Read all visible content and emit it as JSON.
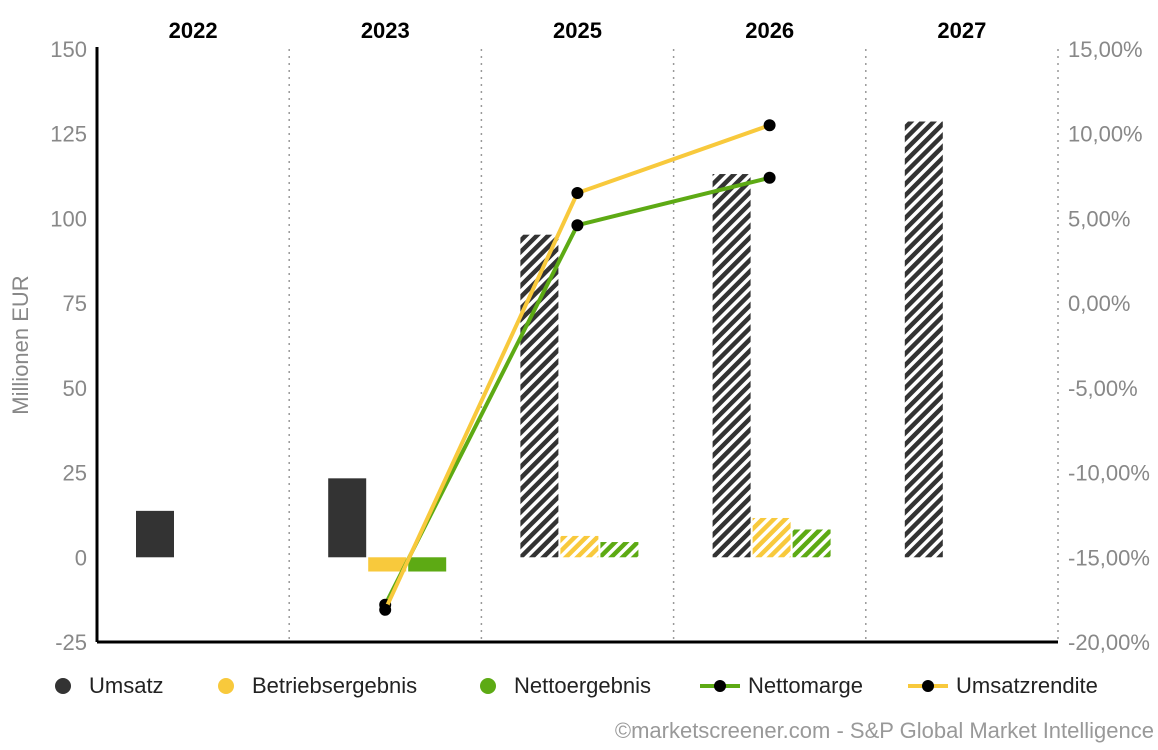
{
  "chart_data": {
    "type": "bar",
    "categories": [
      "2022",
      "2023",
      "2025",
      "2026",
      "2027"
    ],
    "ylabel": "Millionen EUR",
    "ylim": [
      -25,
      150
    ],
    "y_ticks": [
      "150",
      "125",
      "100",
      "75",
      "50",
      "25",
      "0",
      "-25"
    ],
    "y2lim": [
      -20,
      15
    ],
    "y2_ticks": [
      "15,00%",
      "10,00%",
      "5,00%",
      "0,00%",
      "-5,00%",
      "-10,00%",
      "-15,00%",
      "-20,00%"
    ],
    "series": [
      {
        "name": "Umsatz",
        "kind": "bar",
        "axis": "left",
        "color": "#333333",
        "values": [
          13.7,
          23.3,
          95.2,
          113.1,
          128.6
        ],
        "estimate": [
          false,
          false,
          true,
          true,
          true
        ]
      },
      {
        "name": "Betriebsergebnis",
        "kind": "bar",
        "axis": "left",
        "color": "#f8c93c",
        "values": [
          null,
          -4.2,
          6.3,
          11.6,
          null
        ],
        "estimate": [
          false,
          false,
          true,
          true,
          true
        ]
      },
      {
        "name": "Nettoergebnis",
        "kind": "bar",
        "axis": "left",
        "color": "#5daa14",
        "values": [
          null,
          -4.2,
          4.5,
          8.2,
          null
        ],
        "estimate": [
          false,
          false,
          true,
          true,
          true
        ]
      },
      {
        "name": "Nettomarge",
        "kind": "line",
        "axis": "right",
        "color": "#5daa14",
        "values": [
          null,
          -17.8,
          4.6,
          7.4,
          null
        ]
      },
      {
        "name": "Umsatzrendite",
        "kind": "line",
        "axis": "right",
        "color": "#f8c93c",
        "values": [
          null,
          -18.1,
          6.5,
          10.5,
          null
        ]
      }
    ],
    "grid": "vertical-dotted",
    "legend_position": "bottom"
  },
  "legend": [
    {
      "label": "Umsatz",
      "style": "dot",
      "color": "#333333"
    },
    {
      "label": "Betriebsergebnis",
      "style": "dot",
      "color": "#f8c93c"
    },
    {
      "label": "Nettoergebnis",
      "style": "dot",
      "color": "#5daa14"
    },
    {
      "label": "Nettomarge",
      "style": "line",
      "color": "#5daa14"
    },
    {
      "label": "Umsatzrendite",
      "style": "line",
      "color": "#f8c93c"
    }
  ],
  "credit": "©marketscreener.com - S&P Global Market Intelligence"
}
